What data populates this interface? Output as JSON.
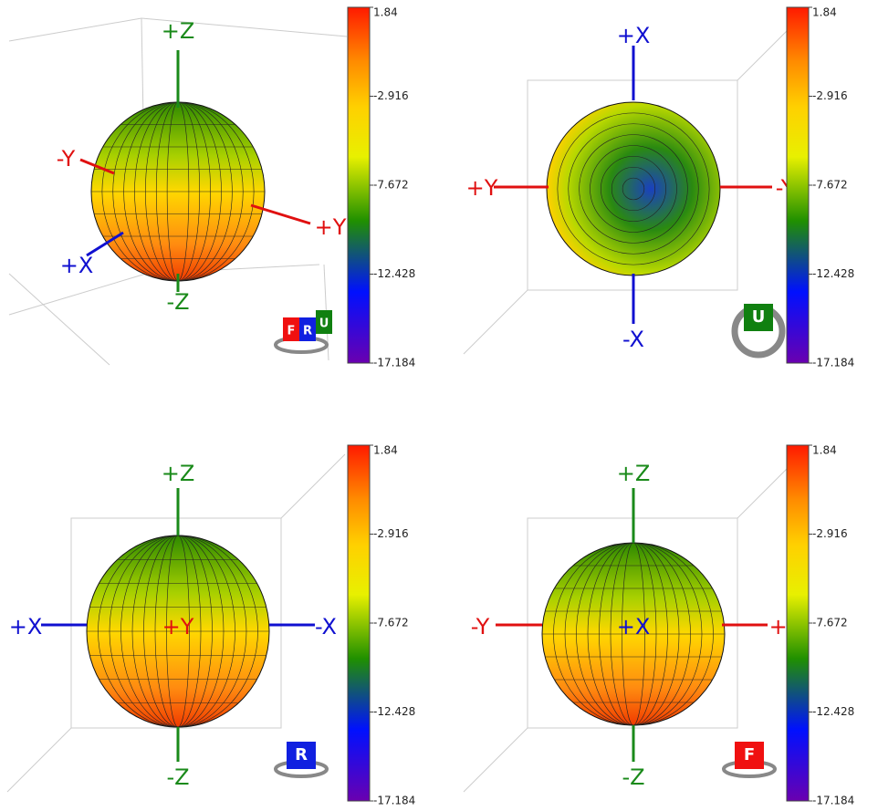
{
  "colorbar": {
    "lim": [
      1.84,
      -17.184
    ],
    "ticks": [
      1.84,
      -2.916,
      -7.672,
      -12.428,
      -17.184
    ]
  },
  "panels": [
    {
      "axes": [
        "+Z",
        "-Y",
        "+Y",
        "+X",
        "-Z"
      ],
      "view_cube": [
        "F",
        "R",
        "U"
      ]
    },
    {
      "axes": [
        "+X",
        "+Y",
        "-Y",
        "-X"
      ],
      "view_cube": [
        "U"
      ]
    },
    {
      "axes": [
        "+Z",
        "+X",
        "+Y",
        "-X",
        "-Z"
      ],
      "view_cube": [
        "R"
      ]
    },
    {
      "axes": [
        "+Z",
        "-Y",
        "+X",
        "+Y",
        "-Z"
      ],
      "view_cube": [
        "F"
      ]
    }
  ]
}
